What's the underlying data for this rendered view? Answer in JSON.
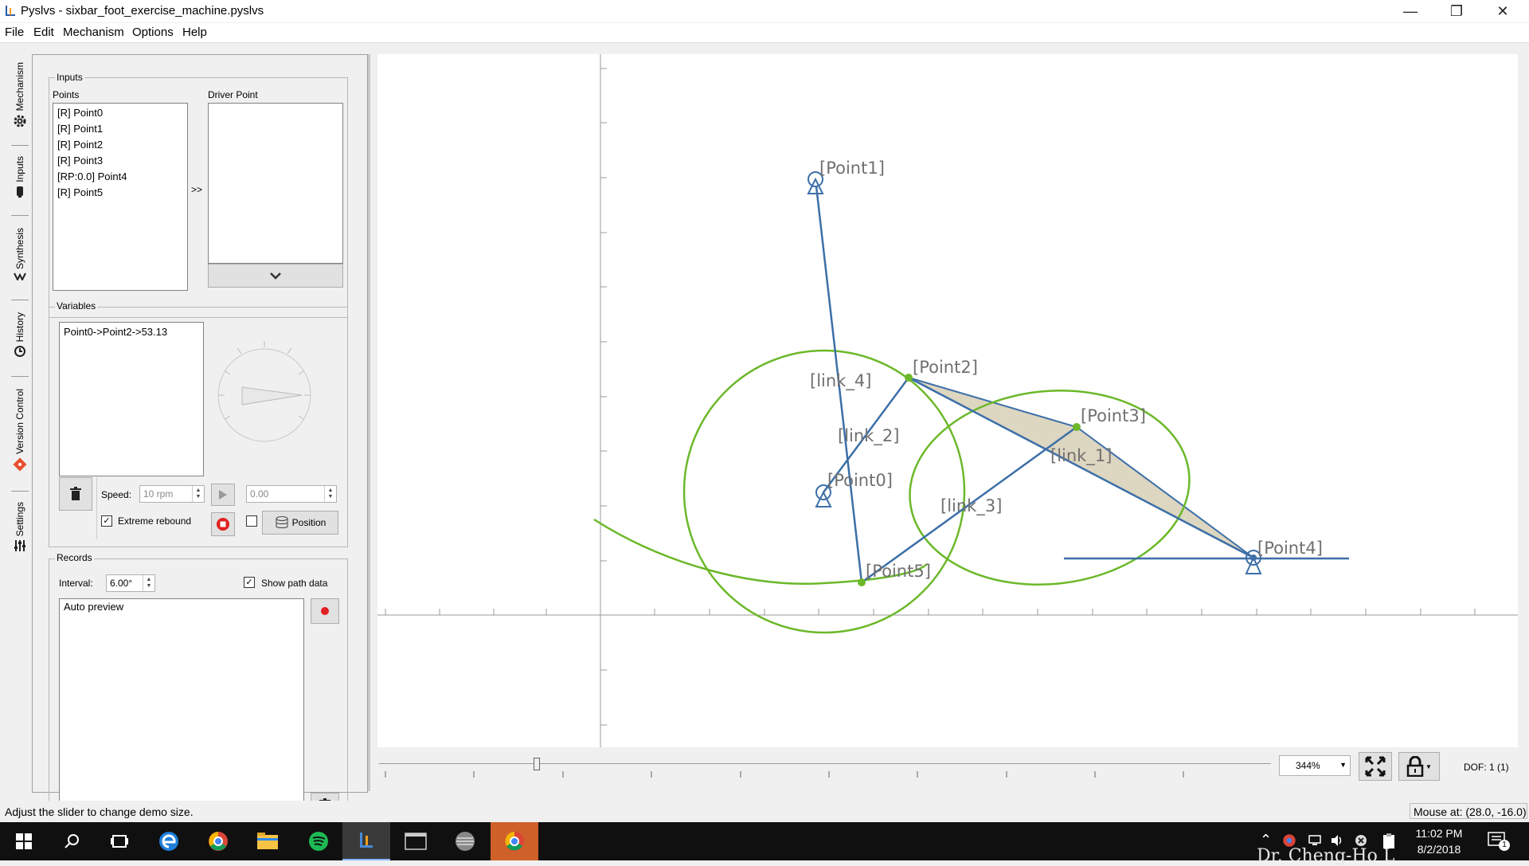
{
  "window": {
    "title": "Pyslvs - sixbar_foot_exercise_machine.pyslvs",
    "buttons": [
      "minimize-icon",
      "restore-icon",
      "close-icon"
    ]
  },
  "menubar": [
    "File",
    "Edit",
    "Mechanism",
    "Options",
    "Help"
  ],
  "side_tabs": [
    {
      "label": "Mechanism",
      "icon": "gear-icon"
    },
    {
      "label": "Inputs",
      "icon": "pen-icon"
    },
    {
      "label": "Synthesis",
      "icon": "synthesis-icon"
    },
    {
      "label": "History",
      "icon": "history-icon"
    },
    {
      "label": "Version Control",
      "icon": "git-icon"
    },
    {
      "label": "Settings",
      "icon": "sliders-icon"
    }
  ],
  "inputs": {
    "group_title": "Inputs",
    "points_label": "Points",
    "driver_label": "Driver Point",
    "points": [
      "[R] Point0",
      "[R] Point1",
      "[R] Point2",
      "[R] Point3",
      "[RP:0.0] Point4",
      "[R] Point5"
    ],
    "add_button": ">>"
  },
  "variables": {
    "group_title": "Variables",
    "items": [
      "Point0->Point2->53.13"
    ],
    "speed_label": "Speed:",
    "speed_value": "10 rpm",
    "angle_value": "0.00",
    "extreme_rebound_label": "Extreme rebound",
    "extreme_rebound_checked": true,
    "position_label": "Position"
  },
  "records": {
    "group_title": "Records",
    "interval_label": "Interval:",
    "interval_value": "6.00°",
    "show_path_label": "Show path data",
    "show_path_checked": true,
    "items": [
      "Auto preview"
    ]
  },
  "canvas": {
    "labels": {
      "p0": "[Point0]",
      "p1": "[Point1]",
      "p2": "[Point2]",
      "p3": "[Point3]",
      "p4": "[Point4]",
      "p5": "[Point5]",
      "l1": "[link_1]",
      "l2": "[link_2]",
      "l3": "[link_3]",
      "l4": "[link_4]"
    },
    "link_color": "#3c6fa8",
    "path_color": "#6cb82a",
    "fill_color": "#ddd6c0"
  },
  "bottom": {
    "zoom": "344%",
    "dof": "DOF:  1 (1)"
  },
  "status": {
    "message": "Adjust the slider to change demo size.",
    "mouse": "Mouse at: (28.0, -16.0)"
  },
  "taskbar": {
    "time": "11:02 PM",
    "date": "8/2/2018",
    "notification_count": "1",
    "watermark": "Dr. Cheng-Ho L"
  }
}
